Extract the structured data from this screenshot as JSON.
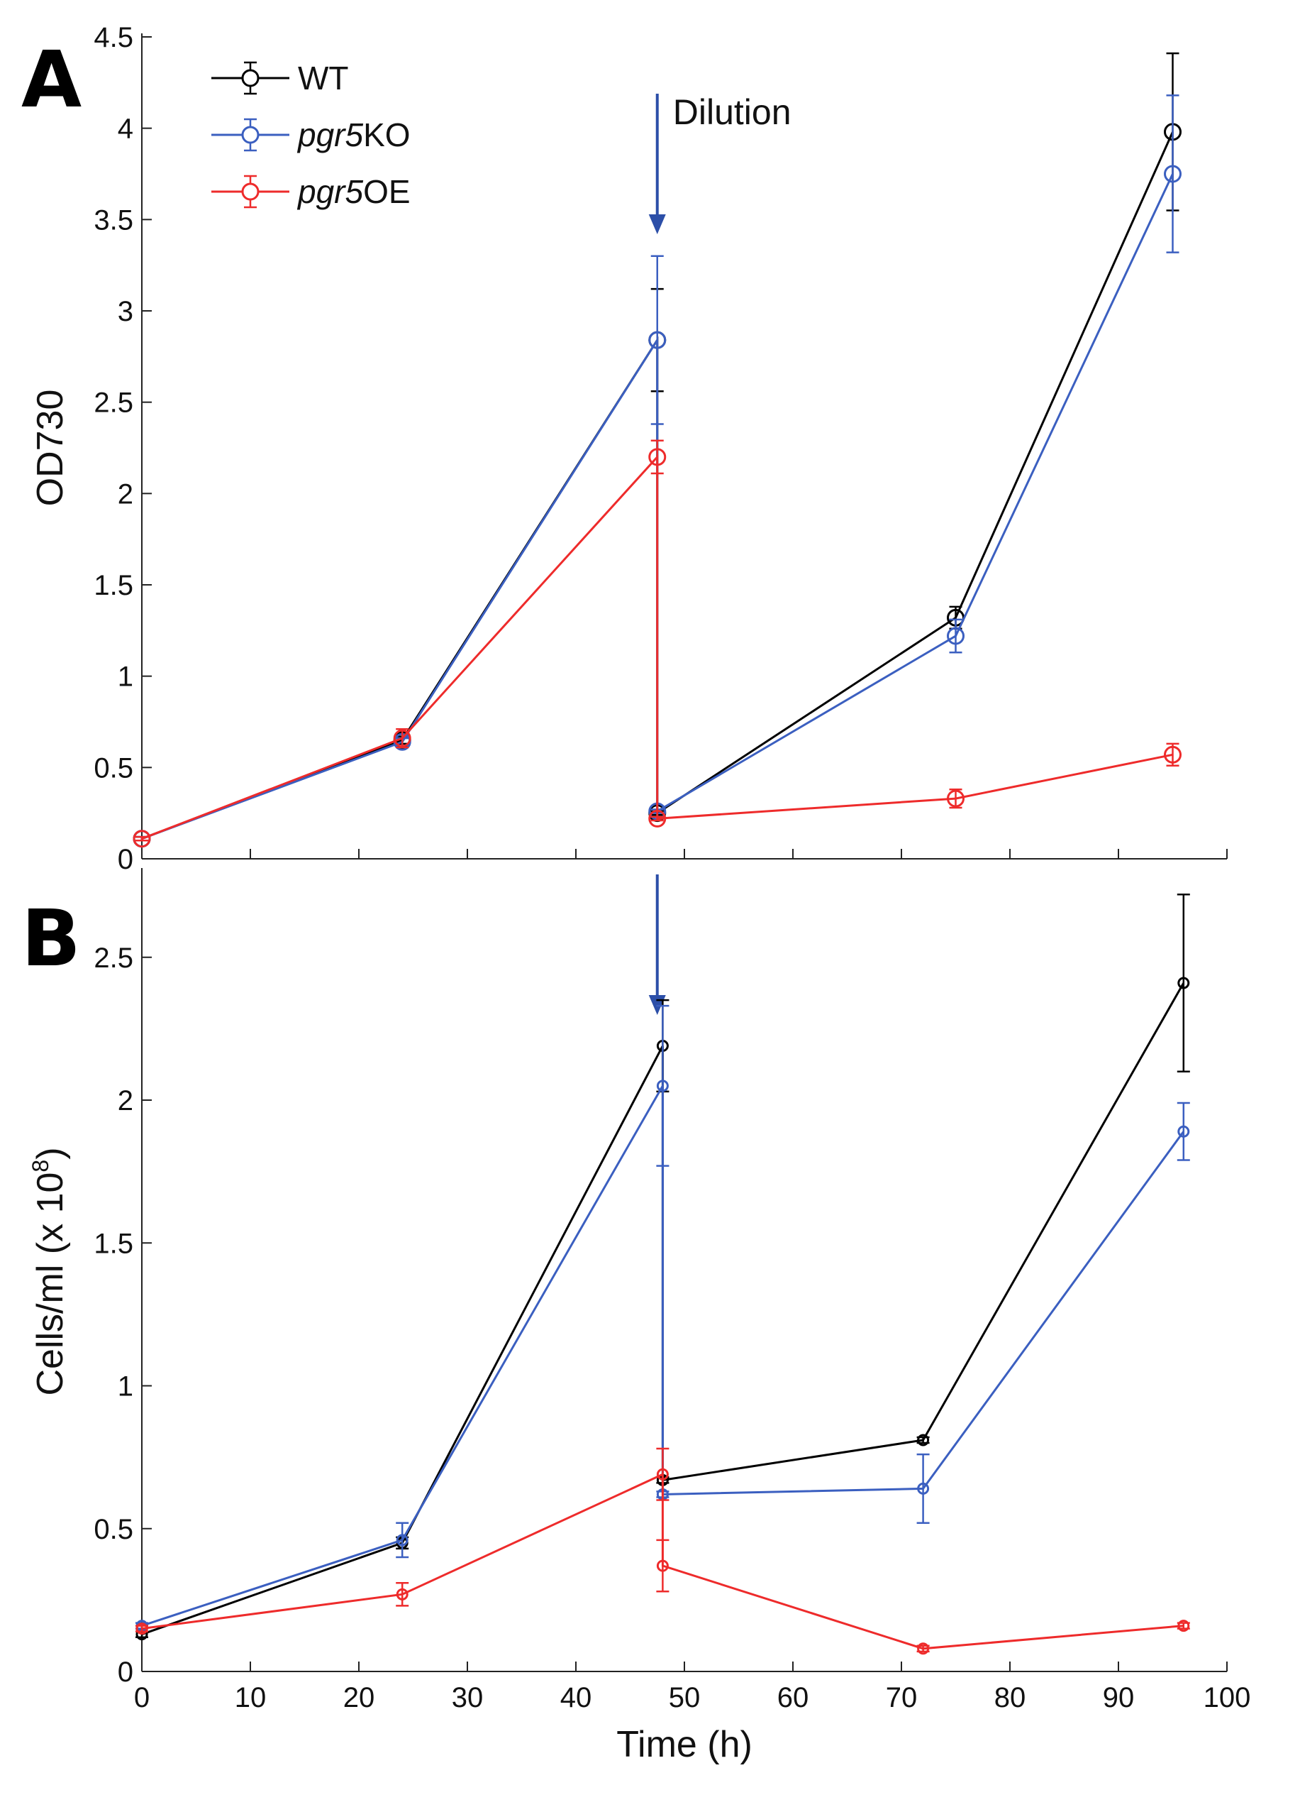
{
  "chart_data": [
    {
      "panel": "A",
      "type": "line",
      "ylabel": "OD730",
      "xlabel": "",
      "xlim": [
        0,
        100
      ],
      "ylim": [
        0,
        4.5
      ],
      "yticks": [
        "0",
        "0.5",
        "1",
        "1.5",
        "2",
        "2.5",
        "3",
        "3.5",
        "4",
        "4.5"
      ],
      "annotation": {
        "text": "Dilution",
        "x": 47.5
      },
      "legend": [
        {
          "key": "wt",
          "prefix": "WT",
          "suffix": ""
        },
        {
          "key": "ko",
          "prefix": "pgr5",
          "suffix": "KO"
        },
        {
          "key": "oe",
          "prefix": "pgr5",
          "suffix": "OE"
        }
      ],
      "series": [
        {
          "name": "WT",
          "color": "#000000",
          "x": [
            0,
            24,
            47.5,
            47.5,
            75,
            95
          ],
          "y": [
            0.11,
            0.65,
            2.84,
            0.25,
            1.32,
            3.98
          ],
          "err": [
            0.01,
            0.02,
            0.28,
            0.01,
            0.06,
            0.43
          ]
        },
        {
          "name": "pgr5KO",
          "color": "#3b5fc0",
          "x": [
            0,
            24,
            47.5,
            47.5,
            75,
            95
          ],
          "y": [
            0.11,
            0.64,
            2.84,
            0.26,
            1.22,
            3.75
          ],
          "err": [
            0.01,
            0.02,
            0.46,
            0.01,
            0.09,
            0.43
          ]
        },
        {
          "name": "pgr5OE",
          "color": "#ee2b2b",
          "x": [
            0,
            24,
            47.5,
            47.5,
            75,
            95
          ],
          "y": [
            0.11,
            0.66,
            2.2,
            0.22,
            0.33,
            0.57
          ],
          "err": [
            0.01,
            0.05,
            0.09,
            0.01,
            0.05,
            0.06
          ]
        }
      ]
    },
    {
      "panel": "B",
      "type": "line",
      "ylabel": "Cells/ml (x 10",
      "ylabel_sup": "8",
      "ylabel_end": ")",
      "xlabel": "Time (h)",
      "xlim": [
        0,
        100
      ],
      "ylim": [
        0,
        2.8
      ],
      "xticks": [
        "0",
        "10",
        "20",
        "30",
        "40",
        "50",
        "60",
        "70",
        "80",
        "90",
        "100"
      ],
      "yticks": [
        "0",
        "0.5",
        "1",
        "1.5",
        "2",
        "2.5"
      ],
      "series": [
        {
          "name": "WT",
          "color": "#000000",
          "x": [
            0,
            24,
            48,
            48,
            72,
            96
          ],
          "y": [
            0.13,
            0.45,
            2.19,
            0.67,
            0.81,
            2.41
          ],
          "err": [
            0.01,
            0.02,
            0.16,
            0.01,
            0.01,
            0.31
          ]
        },
        {
          "name": "pgr5KO",
          "color": "#3b5fc0",
          "x": [
            0,
            24,
            48,
            48,
            72,
            96
          ],
          "y": [
            0.16,
            0.46,
            2.05,
            0.62,
            0.64,
            1.89
          ],
          "err": [
            0.01,
            0.06,
            0.28,
            0.01,
            0.12,
            0.1
          ]
        },
        {
          "name": "pgr5OE",
          "color": "#ee2b2b",
          "x": [
            0,
            24,
            48,
            48,
            72,
            96
          ],
          "y": [
            0.15,
            0.27,
            0.69,
            0.37,
            0.08,
            0.16
          ],
          "err": [
            0.01,
            0.04,
            0.09,
            0.09,
            0.01,
            0.01
          ]
        }
      ]
    }
  ]
}
